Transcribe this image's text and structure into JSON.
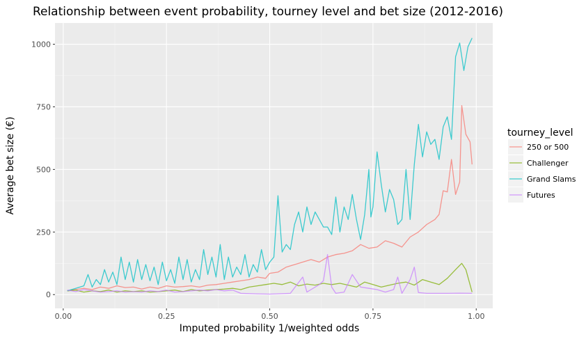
{
  "chart_data": {
    "type": "line",
    "title": "Relationship between event probability, tourney level and bet size (2012-2016)",
    "xlabel": "Imputed probability 1/weighted odds",
    "ylabel": "Average bet size (€)",
    "xlim": [
      -0.02,
      1.04
    ],
    "ylim": [
      -55,
      1085
    ],
    "x_ticks": [
      0,
      0.25,
      0.5,
      0.75,
      1.0
    ],
    "x_tick_labels": [
      "0.00",
      "0.25",
      "0.50",
      "0.75",
      "1.00"
    ],
    "y_ticks": [
      0,
      250,
      500,
      750,
      1000
    ],
    "y_tick_labels": [
      "0",
      "250",
      "500",
      "750",
      "1000"
    ],
    "grid": true,
    "legend": {
      "title": "tourney_level",
      "position": "right"
    },
    "series": [
      {
        "name": "250 or 500",
        "color": "#F8766D",
        "points": [
          [
            0.01,
            15
          ],
          [
            0.03,
            20
          ],
          [
            0.05,
            25
          ],
          [
            0.07,
            20
          ],
          [
            0.09,
            30
          ],
          [
            0.11,
            25
          ],
          [
            0.13,
            35
          ],
          [
            0.15,
            28
          ],
          [
            0.17,
            30
          ],
          [
            0.19,
            22
          ],
          [
            0.21,
            30
          ],
          [
            0.23,
            25
          ],
          [
            0.25,
            35
          ],
          [
            0.27,
            30
          ],
          [
            0.29,
            32
          ],
          [
            0.31,
            35
          ],
          [
            0.33,
            30
          ],
          [
            0.35,
            38
          ],
          [
            0.37,
            40
          ],
          [
            0.39,
            45
          ],
          [
            0.41,
            50
          ],
          [
            0.43,
            55
          ],
          [
            0.45,
            60
          ],
          [
            0.47,
            70
          ],
          [
            0.49,
            65
          ],
          [
            0.5,
            85
          ],
          [
            0.52,
            90
          ],
          [
            0.54,
            110
          ],
          [
            0.56,
            120
          ],
          [
            0.58,
            130
          ],
          [
            0.6,
            140
          ],
          [
            0.62,
            130
          ],
          [
            0.64,
            150
          ],
          [
            0.66,
            160
          ],
          [
            0.68,
            165
          ],
          [
            0.7,
            175
          ],
          [
            0.72,
            200
          ],
          [
            0.74,
            185
          ],
          [
            0.76,
            190
          ],
          [
            0.78,
            215
          ],
          [
            0.8,
            205
          ],
          [
            0.82,
            190
          ],
          [
            0.84,
            230
          ],
          [
            0.86,
            250
          ],
          [
            0.88,
            280
          ],
          [
            0.9,
            300
          ],
          [
            0.91,
            320
          ],
          [
            0.92,
            415
          ],
          [
            0.93,
            410
          ],
          [
            0.94,
            540
          ],
          [
            0.95,
            400
          ],
          [
            0.96,
            450
          ],
          [
            0.965,
            755
          ],
          [
            0.975,
            640
          ],
          [
            0.985,
            610
          ],
          [
            0.99,
            520
          ]
        ]
      },
      {
        "name": "Challenger",
        "color": "#7CAE00",
        "points": [
          [
            0.01,
            15
          ],
          [
            0.03,
            18
          ],
          [
            0.05,
            10
          ],
          [
            0.07,
            15
          ],
          [
            0.09,
            12
          ],
          [
            0.11,
            18
          ],
          [
            0.13,
            10
          ],
          [
            0.15,
            15
          ],
          [
            0.17,
            12
          ],
          [
            0.19,
            15
          ],
          [
            0.21,
            10
          ],
          [
            0.23,
            12
          ],
          [
            0.25,
            15
          ],
          [
            0.27,
            18
          ],
          [
            0.29,
            12
          ],
          [
            0.31,
            20
          ],
          [
            0.33,
            15
          ],
          [
            0.35,
            18
          ],
          [
            0.37,
            20
          ],
          [
            0.39,
            22
          ],
          [
            0.41,
            25
          ],
          [
            0.43,
            20
          ],
          [
            0.45,
            30
          ],
          [
            0.47,
            35
          ],
          [
            0.49,
            40
          ],
          [
            0.51,
            45
          ],
          [
            0.53,
            40
          ],
          [
            0.55,
            50
          ],
          [
            0.57,
            35
          ],
          [
            0.59,
            42
          ],
          [
            0.61,
            38
          ],
          [
            0.63,
            45
          ],
          [
            0.65,
            40
          ],
          [
            0.67,
            45
          ],
          [
            0.69,
            38
          ],
          [
            0.71,
            30
          ],
          [
            0.73,
            50
          ],
          [
            0.75,
            40
          ],
          [
            0.77,
            30
          ],
          [
            0.79,
            38
          ],
          [
            0.81,
            45
          ],
          [
            0.83,
            50
          ],
          [
            0.85,
            38
          ],
          [
            0.87,
            60
          ],
          [
            0.89,
            50
          ],
          [
            0.91,
            40
          ],
          [
            0.93,
            65
          ],
          [
            0.95,
            100
          ],
          [
            0.965,
            125
          ],
          [
            0.975,
            100
          ],
          [
            0.99,
            10
          ]
        ]
      },
      {
        "name": "Grand Slams",
        "color": "#00BFC4",
        "points": [
          [
            0.01,
            15
          ],
          [
            0.03,
            25
          ],
          [
            0.05,
            35
          ],
          [
            0.06,
            80
          ],
          [
            0.07,
            30
          ],
          [
            0.08,
            60
          ],
          [
            0.09,
            40
          ],
          [
            0.1,
            100
          ],
          [
            0.11,
            50
          ],
          [
            0.12,
            90
          ],
          [
            0.13,
            40
          ],
          [
            0.14,
            150
          ],
          [
            0.15,
            60
          ],
          [
            0.16,
            130
          ],
          [
            0.17,
            50
          ],
          [
            0.18,
            140
          ],
          [
            0.19,
            60
          ],
          [
            0.2,
            120
          ],
          [
            0.21,
            55
          ],
          [
            0.22,
            110
          ],
          [
            0.23,
            40
          ],
          [
            0.24,
            130
          ],
          [
            0.25,
            55
          ],
          [
            0.26,
            100
          ],
          [
            0.27,
            45
          ],
          [
            0.28,
            150
          ],
          [
            0.29,
            60
          ],
          [
            0.3,
            140
          ],
          [
            0.31,
            50
          ],
          [
            0.32,
            100
          ],
          [
            0.33,
            60
          ],
          [
            0.34,
            180
          ],
          [
            0.35,
            80
          ],
          [
            0.36,
            150
          ],
          [
            0.37,
            70
          ],
          [
            0.38,
            200
          ],
          [
            0.39,
            60
          ],
          [
            0.4,
            150
          ],
          [
            0.41,
            70
          ],
          [
            0.42,
            110
          ],
          [
            0.43,
            80
          ],
          [
            0.44,
            160
          ],
          [
            0.45,
            70
          ],
          [
            0.46,
            120
          ],
          [
            0.47,
            90
          ],
          [
            0.48,
            180
          ],
          [
            0.49,
            100
          ],
          [
            0.5,
            130
          ],
          [
            0.51,
            150
          ],
          [
            0.52,
            395
          ],
          [
            0.53,
            170
          ],
          [
            0.54,
            200
          ],
          [
            0.55,
            180
          ],
          [
            0.56,
            280
          ],
          [
            0.57,
            330
          ],
          [
            0.58,
            250
          ],
          [
            0.59,
            350
          ],
          [
            0.6,
            280
          ],
          [
            0.61,
            330
          ],
          [
            0.62,
            300
          ],
          [
            0.63,
            270
          ],
          [
            0.64,
            270
          ],
          [
            0.65,
            240
          ],
          [
            0.66,
            390
          ],
          [
            0.67,
            250
          ],
          [
            0.68,
            350
          ],
          [
            0.69,
            300
          ],
          [
            0.7,
            400
          ],
          [
            0.71,
            300
          ],
          [
            0.72,
            220
          ],
          [
            0.73,
            320
          ],
          [
            0.74,
            500
          ],
          [
            0.745,
            310
          ],
          [
            0.75,
            350
          ],
          [
            0.76,
            570
          ],
          [
            0.77,
            440
          ],
          [
            0.78,
            330
          ],
          [
            0.79,
            420
          ],
          [
            0.8,
            380
          ],
          [
            0.81,
            280
          ],
          [
            0.82,
            300
          ],
          [
            0.83,
            500
          ],
          [
            0.84,
            300
          ],
          [
            0.85,
            520
          ],
          [
            0.86,
            680
          ],
          [
            0.87,
            550
          ],
          [
            0.88,
            650
          ],
          [
            0.89,
            600
          ],
          [
            0.9,
            620
          ],
          [
            0.91,
            540
          ],
          [
            0.92,
            670
          ],
          [
            0.93,
            710
          ],
          [
            0.94,
            620
          ],
          [
            0.95,
            950
          ],
          [
            0.96,
            1005
          ],
          [
            0.97,
            895
          ],
          [
            0.98,
            990
          ],
          [
            0.99,
            1025
          ]
        ]
      },
      {
        "name": "Futures",
        "color": "#C77CFF",
        "points": [
          [
            0.01,
            18
          ],
          [
            0.03,
            12
          ],
          [
            0.05,
            20
          ],
          [
            0.07,
            15
          ],
          [
            0.09,
            10
          ],
          [
            0.11,
            12
          ],
          [
            0.13,
            15
          ],
          [
            0.15,
            10
          ],
          [
            0.17,
            12
          ],
          [
            0.19,
            10
          ],
          [
            0.21,
            15
          ],
          [
            0.23,
            12
          ],
          [
            0.25,
            18
          ],
          [
            0.27,
            10
          ],
          [
            0.29,
            12
          ],
          [
            0.31,
            15
          ],
          [
            0.33,
            18
          ],
          [
            0.35,
            15
          ],
          [
            0.37,
            20
          ],
          [
            0.39,
            15
          ],
          [
            0.41,
            18
          ],
          [
            0.43,
            5
          ],
          [
            0.47,
            3
          ],
          [
            0.5,
            2
          ],
          [
            0.55,
            5
          ],
          [
            0.58,
            70
          ],
          [
            0.59,
            10
          ],
          [
            0.6,
            20
          ],
          [
            0.62,
            40
          ],
          [
            0.63,
            55
          ],
          [
            0.64,
            160
          ],
          [
            0.65,
            30
          ],
          [
            0.66,
            5
          ],
          [
            0.68,
            10
          ],
          [
            0.7,
            80
          ],
          [
            0.72,
            30
          ],
          [
            0.74,
            25
          ],
          [
            0.76,
            20
          ],
          [
            0.78,
            10
          ],
          [
            0.8,
            20
          ],
          [
            0.81,
            70
          ],
          [
            0.82,
            5
          ],
          [
            0.84,
            60
          ],
          [
            0.85,
            110
          ],
          [
            0.86,
            8
          ],
          [
            0.88,
            5
          ],
          [
            0.9,
            5
          ],
          [
            0.93,
            5
          ],
          [
            0.96,
            6
          ],
          [
            0.99,
            5
          ]
        ]
      }
    ]
  }
}
